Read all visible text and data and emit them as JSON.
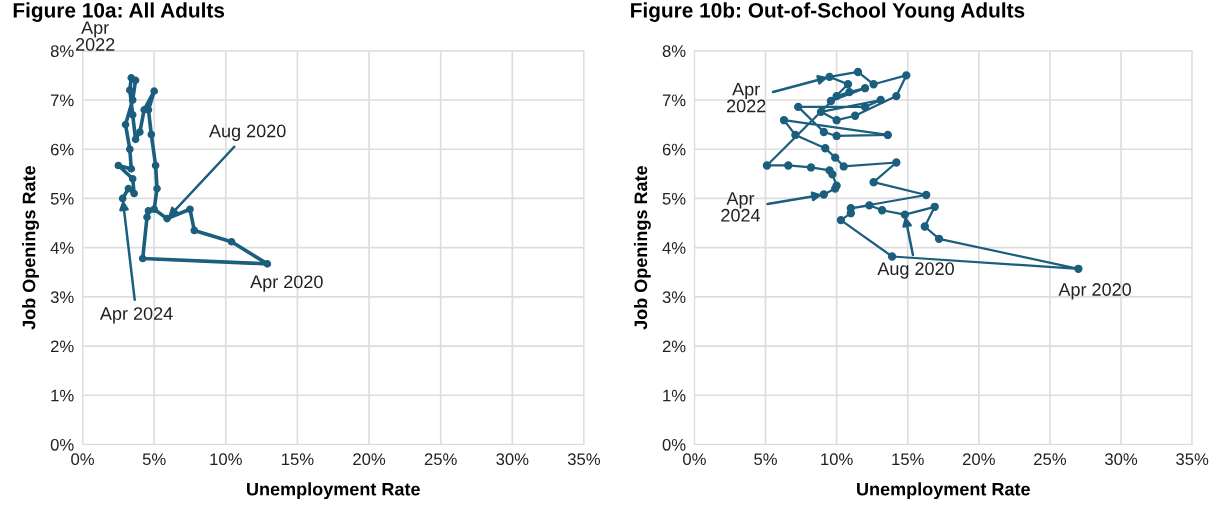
{
  "chart_data": [
    {
      "type": "line",
      "title": "Figure 10a: All Adults",
      "xlabel": "Unemployment Rate",
      "ylabel": "Job Openings Rate",
      "marker": "circle",
      "line_style": "solid",
      "grid": true,
      "xlim": [
        0,
        35
      ],
      "ylim": [
        0,
        8
      ],
      "xticks": [
        {
          "value": 0,
          "label": "0%"
        },
        {
          "value": 5,
          "label": "5%"
        },
        {
          "value": 10,
          "label": "10%"
        },
        {
          "value": 15,
          "label": "15%"
        },
        {
          "value": 20,
          "label": "20%"
        },
        {
          "value": 25,
          "label": "25%"
        },
        {
          "value": 30,
          "label": "30%"
        },
        {
          "value": 35,
          "label": "35%"
        }
      ],
      "yticks": [
        {
          "value": 0,
          "label": "0%"
        },
        {
          "value": 1,
          "label": "1%"
        },
        {
          "value": 2,
          "label": "2%"
        },
        {
          "value": 3,
          "label": "3%"
        },
        {
          "value": 4,
          "label": "4%"
        },
        {
          "value": 5,
          "label": "5%"
        },
        {
          "value": 6,
          "label": "6%"
        },
        {
          "value": 7,
          "label": "7%"
        },
        {
          "value": 8,
          "label": "8%"
        }
      ],
      "series": [
        {
          "color": "#1b5e7e",
          "x": [
            4.6,
            4.5,
            4.2,
            12.9,
            10.4,
            7.8,
            7.5,
            5.9,
            5.0,
            5.2,
            5.1,
            4.8,
            4.6,
            5.0,
            4.3,
            4.0,
            3.7,
            3.5,
            3.3,
            3.4,
            3.7,
            3.5,
            3.0,
            3.3,
            3.4,
            2.5,
            3.5,
            3.6,
            3.2,
            2.8
          ],
          "values": [
            4.75,
            4.62,
            3.78,
            3.67,
            4.12,
            4.35,
            4.78,
            4.59,
            4.78,
            5.2,
            5.67,
            6.3,
            6.8,
            7.18,
            6.8,
            6.35,
            6.2,
            6.7,
            7.2,
            7.45,
            7.4,
            7.0,
            6.5,
            6.0,
            5.6,
            5.67,
            5.4,
            5.1,
            5.2,
            5.0
          ]
        }
      ],
      "annotations": [
        {
          "text": "Apr\n2022",
          "x": 3.4,
          "y": 7.45
        },
        {
          "text": "Aug 2020",
          "x": 5.9,
          "y": 4.59
        },
        {
          "text": "Apr 2024",
          "x": 2.8,
          "y": 5.0
        },
        {
          "text": "Apr 2020",
          "x": 12.9,
          "y": 3.67
        }
      ]
    },
    {
      "type": "line",
      "title": "Figure 10b: Out-of-School Young Adults",
      "xlabel": "Unemployment Rate",
      "ylabel": "Job Openings Rate",
      "marker": "circle",
      "line_style": "solid",
      "grid": true,
      "xlim": [
        0,
        35
      ],
      "ylim": [
        0,
        8
      ],
      "xticks": [
        {
          "value": 0,
          "label": "0%"
        },
        {
          "value": 5,
          "label": "5%"
        },
        {
          "value": 10,
          "label": "10%"
        },
        {
          "value": 15,
          "label": "15%"
        },
        {
          "value": 20,
          "label": "20%"
        },
        {
          "value": 25,
          "label": "25%"
        },
        {
          "value": 30,
          "label": "30%"
        },
        {
          "value": 35,
          "label": "35%"
        }
      ],
      "yticks": [
        {
          "value": 0,
          "label": "0%"
        },
        {
          "value": 1,
          "label": "1%"
        },
        {
          "value": 2,
          "label": "2%"
        },
        {
          "value": 3,
          "label": "3%"
        },
        {
          "value": 4,
          "label": "4%"
        },
        {
          "value": 5,
          "label": "5%"
        },
        {
          "value": 6,
          "label": "6%"
        },
        {
          "value": 7,
          "label": "7%"
        },
        {
          "value": 8,
          "label": "8%"
        }
      ],
      "series": [
        {
          "color": "#1b5e7e",
          "x": [
            11.0,
            10.3,
            13.9,
            27.0,
            17.2,
            16.2,
            16.9,
            14.8,
            13.2,
            12.3,
            11.0,
            16.3,
            12.6,
            14.2,
            10.5,
            9.9,
            9.2,
            7.1,
            6.3,
            13.6,
            10.0,
            9.1,
            7.3,
            12.0,
            13.1,
            8.9,
            10.0,
            11.3,
            14.2,
            14.9,
            12.6,
            11.5,
            9.5,
            10.8,
            9.6,
            12.0,
            10.9,
            10.0,
            5.1,
            6.6,
            8.2,
            9.5,
            9.7,
            10.0,
            9.9,
            9.1
          ],
          "values": [
            4.7,
            4.56,
            3.82,
            3.57,
            4.18,
            4.43,
            4.83,
            4.67,
            4.76,
            4.86,
            4.8,
            5.07,
            5.33,
            5.73,
            5.65,
            5.83,
            6.02,
            6.29,
            6.59,
            6.29,
            6.27,
            6.35,
            6.86,
            6.86,
            7.0,
            6.76,
            6.59,
            6.68,
            7.08,
            7.5,
            7.32,
            7.57,
            7.47,
            7.32,
            6.98,
            7.24,
            7.16,
            7.08,
            5.67,
            5.67,
            5.63,
            5.57,
            5.49,
            5.26,
            5.2,
            5.08
          ]
        }
      ],
      "annotations": [
        {
          "text": "Apr\n2022",
          "x": 9.5,
          "y": 7.47
        },
        {
          "text": "Apr\n2024",
          "x": 9.1,
          "y": 5.08
        },
        {
          "text": "Aug 2020",
          "x": 14.8,
          "y": 4.67
        },
        {
          "text": "Apr 2020",
          "x": 27.0,
          "y": 3.57
        }
      ]
    }
  ]
}
